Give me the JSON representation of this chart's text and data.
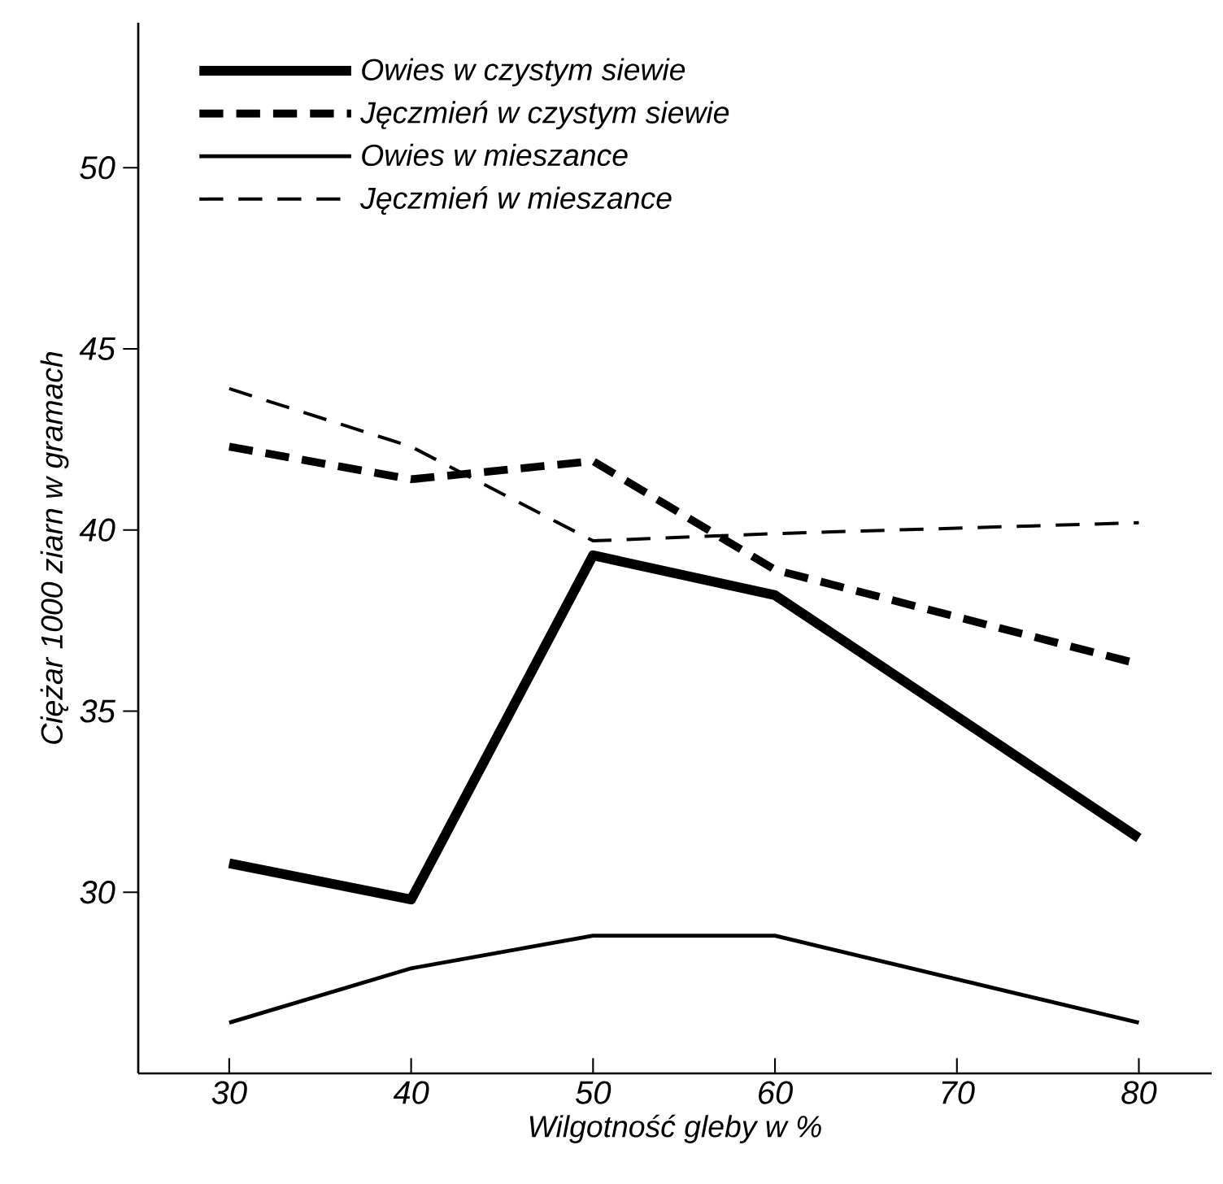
{
  "chart_data": {
    "type": "line",
    "xlabel": "Wilgotność gleby w %",
    "ylabel": "Ciężar 1000 ziarn w gramach",
    "x": [
      30,
      40,
      50,
      60,
      80
    ],
    "series": [
      {
        "name": "Owies w czystym siewie",
        "color": "#000000",
        "line_style": "solid",
        "values": [
          30.8,
          29.8,
          39.3,
          38.2,
          31.5
        ]
      },
      {
        "name": "Jęczmień w czystym siewie",
        "color": "#000000",
        "line_style": "dashed",
        "values": [
          42.3,
          41.4,
          41.9,
          38.9,
          36.3
        ]
      },
      {
        "name": "Owies w mieszance",
        "color": "#000000",
        "line_style": "solid",
        "values": [
          26.4,
          27.9,
          28.8,
          28.8,
          26.4
        ]
      },
      {
        "name": "Jęczmień w mieszance",
        "color": "#000000",
        "line_style": "dashed",
        "values": [
          43.9,
          42.3,
          39.7,
          39.9,
          40.2
        ]
      }
    ],
    "xlim": [
      25,
      84
    ],
    "ylim": [
      25,
      54
    ],
    "xticks": [
      30,
      40,
      50,
      60,
      70,
      80
    ],
    "yticks": [
      30,
      35,
      40,
      45,
      50
    ],
    "grid": false,
    "legend": "top left",
    "marker": "none"
  }
}
